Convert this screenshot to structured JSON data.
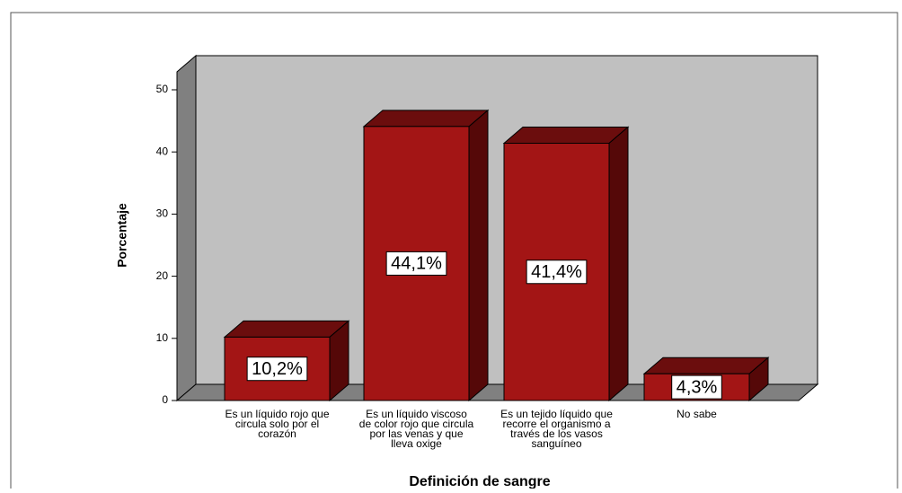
{
  "chart_data": {
    "type": "bar3d",
    "categories": [
      "Es un líquido rojo que circula solo por el corazón",
      "Es un líquido viscoso de color rojo que circula por las venas y que lleva oxige",
      "Es un tejido líquido que recorre el organismo a través de los vasos sanguíneo",
      "No sabe"
    ],
    "values": [
      10.2,
      44.1,
      41.4,
      4.3
    ],
    "value_labels": [
      "10,2%",
      "44,1%",
      "41,4%",
      "4,3%"
    ],
    "color": "#a31515",
    "ylabel": "Porcentaje",
    "xlabel": "Definición de sangre",
    "ylim": [
      0,
      50
    ],
    "yticks": [
      0,
      10,
      20,
      30,
      40,
      50
    ]
  }
}
